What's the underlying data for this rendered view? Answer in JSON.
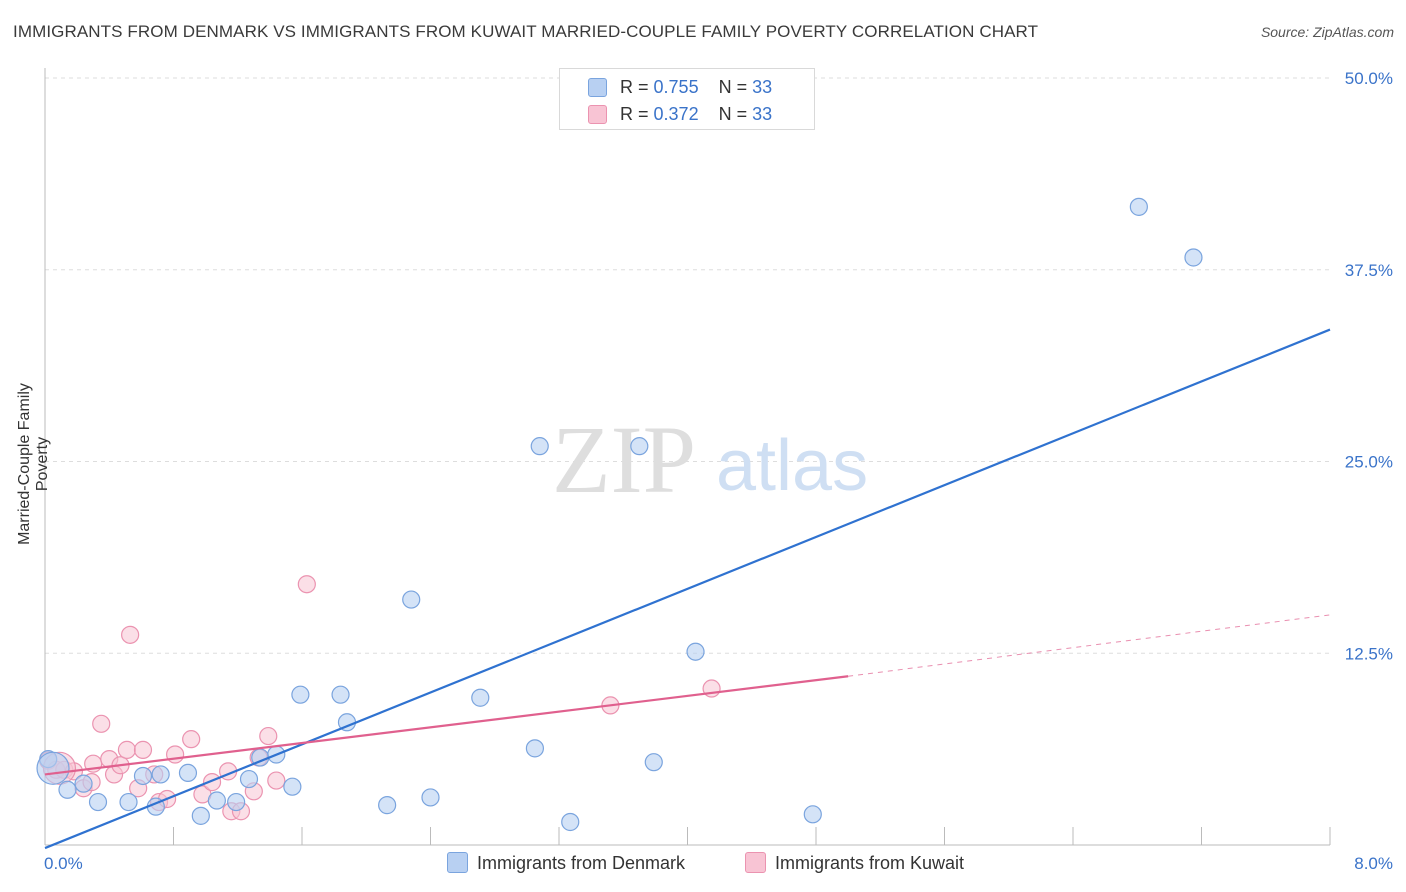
{
  "title": "IMMIGRANTS FROM DENMARK VS IMMIGRANTS FROM KUWAIT MARRIED-COUPLE FAMILY POVERTY CORRELATION CHART",
  "source": "Source: ZipAtlas.com",
  "watermark": {
    "zip": "ZIP",
    "atlas": "atlas"
  },
  "legend": {
    "rows": [
      {
        "r_label": "R =",
        "r_value": "0.755",
        "n_label": "N =",
        "n_value": "33"
      },
      {
        "r_label": "R =",
        "r_value": "0.372",
        "n_label": "N =",
        "n_value": "33"
      }
    ]
  },
  "bottom_legend": {
    "denmark": "Immigrants from Denmark",
    "kuwait": "Immigrants from Kuwait"
  },
  "colors": {
    "denmark_fill": "#b8d0f2",
    "denmark_stroke": "#7aa4de",
    "denmark_line": "#2f72d0",
    "kuwait_fill": "#f8c4d4",
    "kuwait_stroke": "#eb93b0",
    "kuwait_line": "#e0608e",
    "grid": "#dddddd",
    "tick_text": "#3a73c9"
  },
  "chart_data": {
    "type": "scatter",
    "title": "IMMIGRANTS FROM DENMARK VS IMMIGRANTS FROM KUWAIT MARRIED-COUPLE FAMILY POVERTY CORRELATION CHART",
    "xlabel": "",
    "ylabel": "Married-Couple Family Poverty",
    "xlim": [
      0,
      8
    ],
    "ylim": [
      0,
      50
    ],
    "x_tick_labels": [
      "0.0%",
      "8.0%"
    ],
    "y_ticks": [
      12.5,
      25.0,
      37.5,
      50.0
    ],
    "y_tick_labels": [
      "12.5%",
      "25.0%",
      "37.5%",
      "50.0%"
    ],
    "grid": true,
    "legend_position": "top-center",
    "series": [
      {
        "name": "Immigrants from Denmark",
        "R": 0.755,
        "N": 33,
        "points": [
          [
            0.02,
            5.6
          ],
          [
            0.14,
            3.6
          ],
          [
            0.24,
            4.0
          ],
          [
            0.33,
            2.8
          ],
          [
            0.52,
            2.8
          ],
          [
            0.61,
            4.5
          ],
          [
            0.69,
            2.5
          ],
          [
            0.72,
            4.6
          ],
          [
            0.89,
            4.7
          ],
          [
            0.97,
            1.9
          ],
          [
            1.07,
            2.9
          ],
          [
            1.19,
            2.8
          ],
          [
            1.27,
            4.3
          ],
          [
            1.34,
            5.7
          ],
          [
            1.44,
            5.9
          ],
          [
            1.54,
            3.8
          ],
          [
            1.59,
            9.8
          ],
          [
            1.84,
            9.8
          ],
          [
            1.88,
            8.0
          ],
          [
            2.13,
            2.6
          ],
          [
            2.28,
            16.0
          ],
          [
            2.4,
            3.1
          ],
          [
            2.71,
            9.6
          ],
          [
            3.05,
            6.3
          ],
          [
            3.08,
            26.0
          ],
          [
            3.27,
            1.5
          ],
          [
            3.7,
            26.0
          ],
          [
            3.79,
            5.4
          ],
          [
            4.05,
            12.6
          ],
          [
            4.78,
            2.0
          ],
          [
            6.81,
            41.6
          ],
          [
            7.15,
            38.3
          ],
          [
            0.05,
            5.0
          ]
        ],
        "trend": {
          "x": [
            0.0,
            8.0
          ],
          "y": [
            -0.2,
            33.6
          ]
        }
      },
      {
        "name": "Immigrants from Kuwait",
        "R": 0.372,
        "N": 33,
        "points": [
          [
            0.02,
            5.5
          ],
          [
            0.07,
            4.9
          ],
          [
            0.12,
            4.9
          ],
          [
            0.18,
            4.8
          ],
          [
            0.24,
            3.7
          ],
          [
            0.29,
            4.1
          ],
          [
            0.3,
            5.3
          ],
          [
            0.35,
            7.9
          ],
          [
            0.4,
            5.6
          ],
          [
            0.43,
            4.6
          ],
          [
            0.47,
            5.2
          ],
          [
            0.51,
            6.2
          ],
          [
            0.53,
            13.7
          ],
          [
            0.58,
            3.7
          ],
          [
            0.61,
            6.2
          ],
          [
            0.68,
            4.6
          ],
          [
            0.71,
            2.8
          ],
          [
            0.76,
            3.0
          ],
          [
            0.81,
            5.9
          ],
          [
            0.91,
            6.9
          ],
          [
            0.98,
            3.3
          ],
          [
            1.04,
            4.1
          ],
          [
            1.14,
            4.8
          ],
          [
            1.16,
            2.2
          ],
          [
            1.22,
            2.2
          ],
          [
            1.3,
            3.5
          ],
          [
            1.33,
            5.7
          ],
          [
            1.39,
            7.1
          ],
          [
            1.44,
            4.2
          ],
          [
            1.63,
            17.0
          ],
          [
            3.52,
            9.1
          ],
          [
            4.15,
            10.2
          ],
          [
            0.09,
            5.0
          ]
        ],
        "trend": {
          "x": [
            0.0,
            5.0
          ],
          "y": [
            4.6,
            11.0
          ]
        },
        "trend_extension": {
          "x": [
            5.0,
            8.0
          ],
          "y": [
            11.0,
            15.0
          ]
        }
      }
    ]
  }
}
